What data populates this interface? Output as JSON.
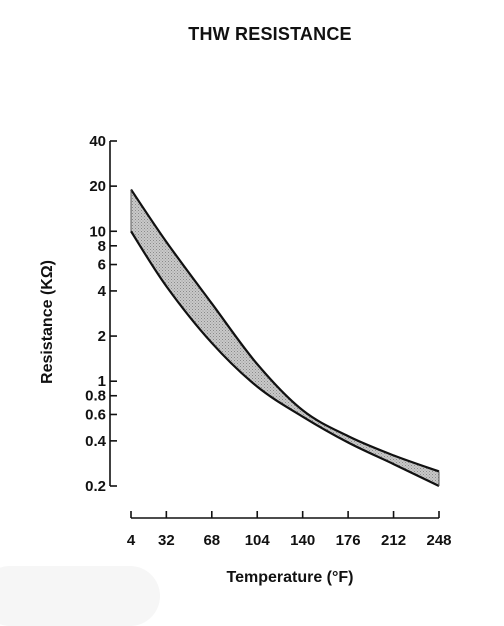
{
  "chart_data": {
    "type": "area",
    "title": "THW RESISTANCE",
    "xlabel": "Temperature (°F)",
    "ylabel": "Resistance (KΩ)",
    "x_scale": "linear",
    "y_scale": "log",
    "xlim": [
      4,
      248
    ],
    "ylim": [
      0.2,
      40
    ],
    "x_ticks": [
      "4",
      "32",
      "68",
      "104",
      "140",
      "176",
      "212",
      "248"
    ],
    "x_tick_values": [
      4,
      32,
      68,
      104,
      140,
      176,
      212,
      248
    ],
    "y_ticks": [
      "40",
      "20",
      "10",
      "8",
      "6",
      "4",
      "2",
      "1",
      "0.8",
      "0.6",
      "0.4",
      "0.2"
    ],
    "y_tick_values": [
      40,
      20,
      10,
      8,
      6,
      4,
      2,
      1,
      0.8,
      0.6,
      0.4,
      0.2
    ],
    "grid": false,
    "band_fill": "#a9a9a9",
    "series": [
      {
        "name": "",
        "x": [
          4,
          32,
          68,
          104,
          140,
          176,
          212,
          248
        ],
        "values": [
          19,
          8.5,
          3.3,
          1.3,
          0.64,
          0.43,
          0.32,
          0.25
        ]
      },
      {
        "name": "",
        "x": [
          4,
          32,
          68,
          104,
          140,
          176,
          212,
          248
        ],
        "values": [
          10,
          4.3,
          1.8,
          0.92,
          0.58,
          0.39,
          0.28,
          0.2
        ]
      }
    ]
  }
}
